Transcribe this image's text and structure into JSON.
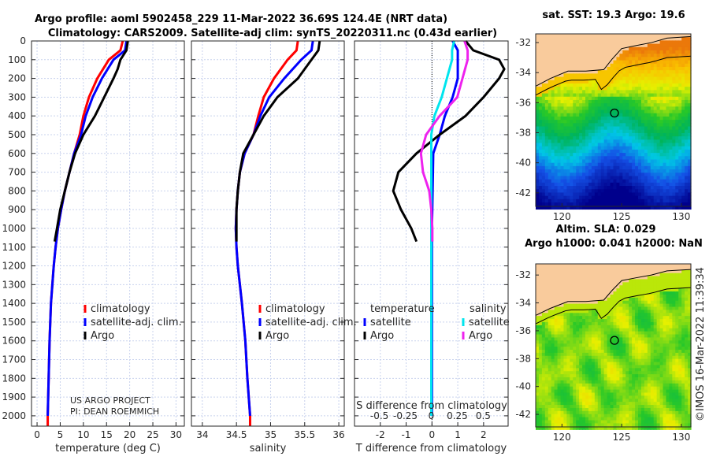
{
  "title": {
    "line1": "Argo profile: aoml 5902458_229 11-Mar-2022 36.69S 124.4E (NRT data)",
    "line2": "Climatology: CARS2009. Satellite-adj clim: synTS_20220311.nc (0.43d earlier)"
  },
  "credit": {
    "line1": "US ARGO PROJECT",
    "line2": "PI: DEAN ROEMMICH"
  },
  "watermark": "©IMOS 16-Mar-2022 11:39:34",
  "colors": {
    "climatology": "#ff0000",
    "satellite_t": "#0000ff",
    "argo_t": "#000000",
    "satellite_s": "#00e5ee",
    "argo_s": "#ee22ee",
    "land": "#f9cb9c"
  },
  "chart_data": [
    {
      "type": "line",
      "name": "temperature",
      "xlabel": "temperature (deg C)",
      "ylabel": "",
      "xlim": [
        -1.2,
        31.8
      ],
      "ylim": [
        2055,
        0
      ],
      "xticks": [
        "0",
        "5",
        "10",
        "15",
        "20",
        "25",
        "30"
      ],
      "xtick_values": [
        0,
        5,
        10,
        15,
        20,
        25,
        30
      ],
      "yticks": [
        "0",
        "100",
        "200",
        "300",
        "400",
        "500",
        "600",
        "700",
        "800",
        "900",
        "1000",
        "1100",
        "1200",
        "1300",
        "1400",
        "1500",
        "1600",
        "1700",
        "1800",
        "1900",
        "2000"
      ],
      "legend": [
        "climatology",
        "satellite-adj. clim.",
        "Argo"
      ],
      "series": [
        {
          "name": "climatology",
          "depth": [
            0,
            50,
            100,
            200,
            300,
            400,
            500,
            600,
            700,
            800,
            900,
            1000,
            1100,
            1200,
            1400,
            1600,
            1800,
            2000,
            2055
          ],
          "values": [
            18.5,
            18,
            15.5,
            13,
            11.2,
            10,
            9.2,
            8,
            7,
            6,
            5.2,
            4.5,
            4,
            3.6,
            3,
            2.7,
            2.5,
            2.3,
            2.3
          ]
        },
        {
          "name": "satellite-adj. clim.",
          "depth": [
            0,
            50,
            100,
            200,
            300,
            400,
            500,
            600,
            700,
            800,
            900,
            1000,
            1100,
            1200,
            1400,
            1600,
            1800,
            2000
          ],
          "values": [
            19.3,
            19,
            16.5,
            14,
            12,
            10.5,
            9.5,
            8,
            7,
            6,
            5.2,
            4.5,
            4,
            3.6,
            3,
            2.7,
            2.5,
            2.3
          ]
        },
        {
          "name": "Argo",
          "depth": [
            0,
            50,
            100,
            150,
            200,
            300,
            400,
            500,
            600,
            700,
            800,
            900,
            1000,
            1070
          ],
          "values": [
            19.6,
            19.3,
            18,
            17.4,
            16.5,
            14.5,
            12.5,
            10,
            8.2,
            7,
            6,
            5,
            4.3,
            3.8
          ]
        }
      ]
    },
    {
      "type": "line",
      "name": "salinity",
      "xlabel": "salinity",
      "xlim": [
        33.84,
        36.08
      ],
      "ylim": [
        2055,
        0
      ],
      "xticks": [
        "34",
        "34.5",
        "35",
        "35.5",
        "36"
      ],
      "xtick_values": [
        34,
        34.5,
        35,
        35.5,
        36
      ],
      "legend": [
        "climatology",
        "satellite-adj. clim.",
        "Argo"
      ],
      "series": [
        {
          "name": "climatology",
          "depth": [
            0,
            50,
            100,
            200,
            300,
            400,
            500,
            600,
            700,
            800,
            900,
            1000,
            1100,
            1200,
            1400,
            1600,
            1800,
            2000,
            2055
          ],
          "values": [
            35.4,
            35.38,
            35.25,
            35.05,
            34.9,
            34.82,
            34.75,
            34.62,
            34.55,
            34.52,
            34.5,
            34.49,
            34.5,
            34.52,
            34.58,
            34.63,
            34.66,
            34.7,
            34.7
          ]
        },
        {
          "name": "satellite-adj. clim.",
          "depth": [
            0,
            50,
            100,
            200,
            300,
            400,
            500,
            600,
            700,
            800,
            900,
            1000,
            1100,
            1200,
            1400,
            1600,
            1800,
            2000
          ],
          "values": [
            35.62,
            35.6,
            35.45,
            35.2,
            34.98,
            34.85,
            34.75,
            34.62,
            34.55,
            34.52,
            34.5,
            34.49,
            34.5,
            34.52,
            34.58,
            34.63,
            34.66,
            34.7
          ]
        },
        {
          "name": "Argo",
          "depth": [
            0,
            50,
            100,
            200,
            300,
            400,
            500,
            600,
            700,
            800,
            900,
            1000,
            1070
          ],
          "values": [
            35.72,
            35.7,
            35.6,
            35.4,
            35.1,
            34.9,
            34.75,
            34.6,
            34.55,
            34.52,
            34.5,
            34.5,
            34.5
          ]
        }
      ]
    },
    {
      "type": "line",
      "name": "difference",
      "xlabel": "T difference from climatology",
      "xlabel_top": "S difference from climatology",
      "xlim": [
        -3,
        2.95
      ],
      "s_xlim": [
        -0.74,
        0.74
      ],
      "ylim": [
        2055,
        0
      ],
      "xticks": [
        "-2",
        "-1",
        "0",
        "1",
        "2"
      ],
      "xtick_values": [
        -2,
        -1,
        0,
        1,
        2
      ],
      "s_xticks": [
        "-0.5",
        "-0.25",
        "0",
        "0.25",
        "0.5"
      ],
      "s_xtick_values": [
        -0.5,
        -0.25,
        0,
        0.25,
        0.5
      ],
      "legend_t": {
        "title": "temperature",
        "items": [
          "satellite",
          "Argo"
        ]
      },
      "legend_s": {
        "title": "salinity",
        "items": [
          "satellite",
          "Argo"
        ]
      },
      "series": [
        {
          "name": "T satellite",
          "axis": "T",
          "depth": [
            0,
            50,
            100,
            200,
            300,
            400,
            500,
            600,
            1000,
            1500,
            2000
          ],
          "values": [
            0.8,
            1,
            1,
            1,
            0.8,
            0.5,
            0.3,
            0.05,
            0,
            0,
            0
          ]
        },
        {
          "name": "T Argo",
          "axis": "T",
          "depth": [
            0,
            50,
            100,
            150,
            200,
            300,
            400,
            500,
            600,
            700,
            800,
            900,
            1000,
            1070
          ],
          "values": [
            1.3,
            1.6,
            2.6,
            2.8,
            2.6,
            2,
            1.3,
            0.3,
            -0.6,
            -1.3,
            -1.5,
            -1.2,
            -0.8,
            -0.6
          ]
        },
        {
          "name": "S satellite",
          "axis": "S",
          "depth": [
            0,
            50,
            100,
            200,
            300,
            400,
            500,
            600,
            1000,
            1500,
            2000
          ],
          "values": [
            0.22,
            0.2,
            0.2,
            0.15,
            0.1,
            0.03,
            0,
            0,
            0,
            0,
            0
          ]
        },
        {
          "name": "S Argo",
          "axis": "S",
          "depth": [
            0,
            50,
            100,
            200,
            300,
            400,
            500,
            600,
            700,
            800,
            900,
            1000,
            1070
          ],
          "values": [
            0.32,
            0.35,
            0.35,
            0.3,
            0.25,
            0.08,
            -0.05,
            -0.1,
            -0.08,
            -0.02,
            0,
            0.01,
            0.01
          ]
        }
      ]
    }
  ],
  "maps": [
    {
      "title": "sat. SST: 19.3 Argo: 19.6",
      "field": "sst",
      "xticks": [
        "120",
        "125",
        "130"
      ],
      "xtick_values": [
        120,
        125,
        130
      ],
      "yticks": [
        "-32",
        "-34",
        "-36",
        "-38",
        "-40",
        "-42"
      ],
      "ytick_values": [
        -32,
        -34,
        -36,
        -38,
        -40,
        -42
      ],
      "lon_range": [
        117.8,
        130.8
      ],
      "lat_range": [
        -31.4,
        -42.9
      ],
      "float_lon": 124.4,
      "float_lat": -36.69
    },
    {
      "title1": "Altim. SLA: 0.029",
      "title2": "Argo h1000: 0.041 h2000: NaN",
      "field": "sla",
      "xticks": [
        "120",
        "125",
        "130"
      ],
      "xtick_values": [
        120,
        125,
        130
      ],
      "yticks": [
        "-32",
        "-34",
        "-36",
        "-38",
        "-40",
        "-42"
      ],
      "ytick_values": [
        -32,
        -34,
        -36,
        -38,
        -40,
        -42
      ],
      "lon_range": [
        117.8,
        130.8
      ],
      "lat_range": [
        -31.0,
        -42.9
      ],
      "float_lon": 124.4,
      "float_lat": -36.69
    }
  ]
}
